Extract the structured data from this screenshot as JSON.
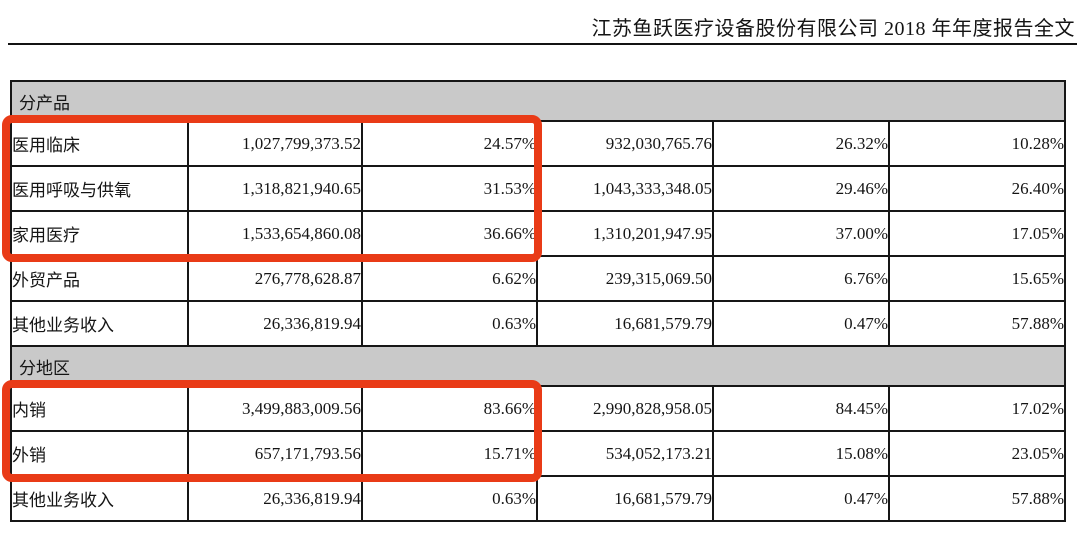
{
  "header": {
    "title": "江苏鱼跃医疗设备股份有限公司 2018 年年度报告全文"
  },
  "colors": {
    "highlight_red": "#e93b17",
    "section_gray": "#c9c9c9"
  },
  "table": {
    "sections": [
      {
        "label": "分产品",
        "rows": [
          {
            "label": "医用临床",
            "values": [
              "1,027,799,373.52",
              "24.57%",
              "932,030,765.76",
              "26.32%",
              "10.28%"
            ],
            "highlighted": true
          },
          {
            "label": "医用呼吸与供氧",
            "values": [
              "1,318,821,940.65",
              "31.53%",
              "1,043,333,348.05",
              "29.46%",
              "26.40%"
            ],
            "highlighted": true
          },
          {
            "label": "家用医疗",
            "values": [
              "1,533,654,860.08",
              "36.66%",
              "1,310,201,947.95",
              "37.00%",
              "17.05%"
            ],
            "highlighted": true
          },
          {
            "label": "外贸产品",
            "values": [
              "276,778,628.87",
              "6.62%",
              "239,315,069.50",
              "6.76%",
              "15.65%"
            ],
            "highlighted": false
          },
          {
            "label": "其他业务收入",
            "values": [
              "26,336,819.94",
              "0.63%",
              "16,681,579.79",
              "0.47%",
              "57.88%"
            ],
            "highlighted": false
          }
        ]
      },
      {
        "label": "分地区",
        "rows": [
          {
            "label": "内销",
            "values": [
              "3,499,883,009.56",
              "83.66%",
              "2,990,828,958.05",
              "84.45%",
              "17.02%"
            ],
            "highlighted": true
          },
          {
            "label": "外销",
            "values": [
              "657,171,793.56",
              "15.71%",
              "534,052,173.21",
              "15.08%",
              "23.05%"
            ],
            "highlighted": true
          },
          {
            "label": "其他业务收入",
            "values": [
              "26,336,819.94",
              "0.63%",
              "16,681,579.79",
              "0.47%",
              "57.88%"
            ],
            "highlighted": false
          }
        ]
      }
    ]
  }
}
